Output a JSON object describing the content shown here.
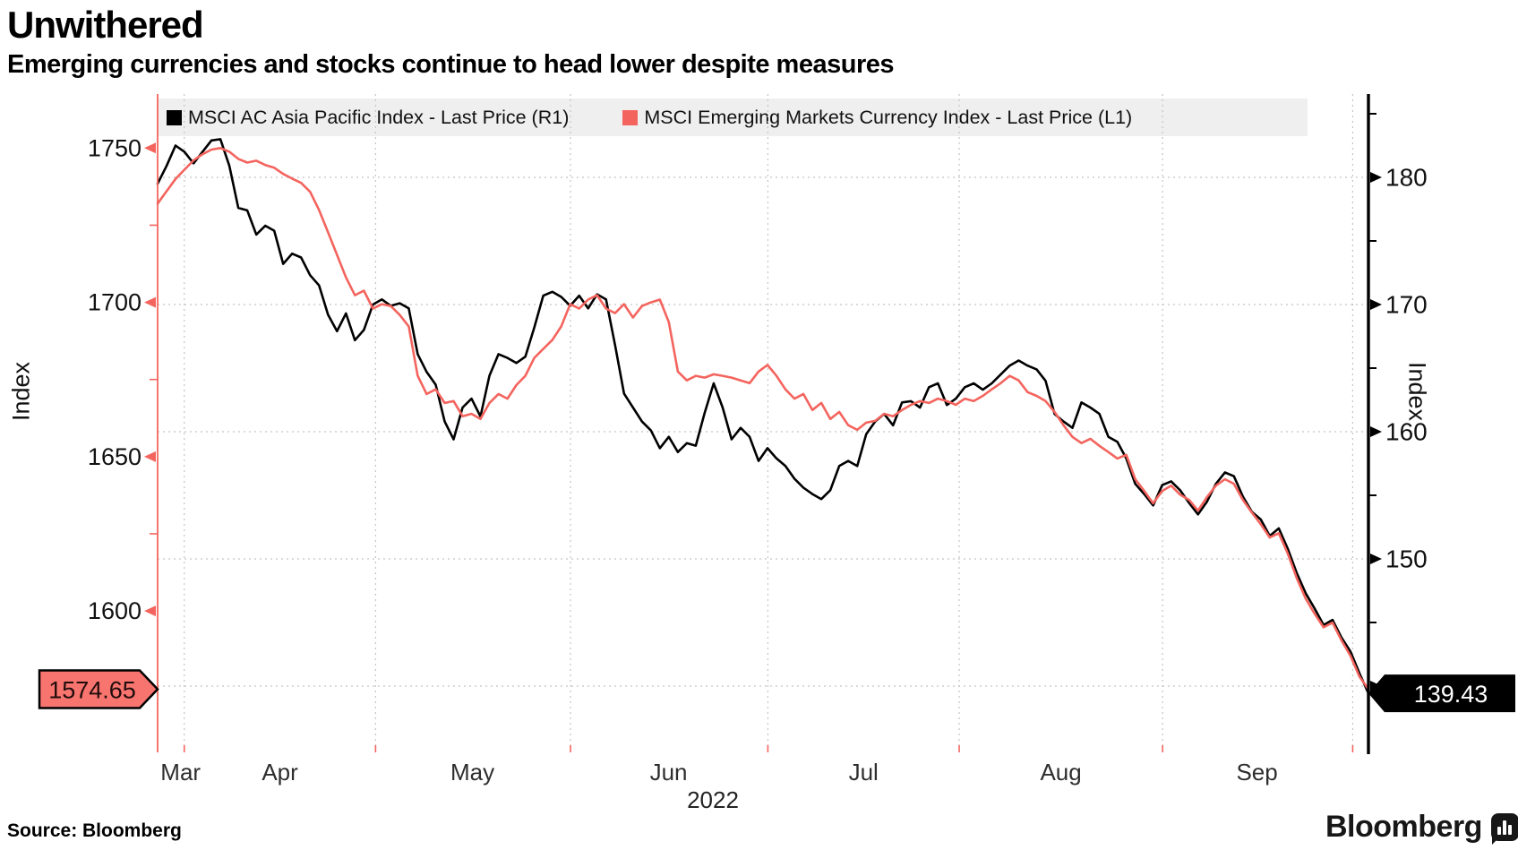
{
  "header": {
    "title": "Unwithered",
    "subtitle": "Emerging currencies and stocks continue to head lower despite measures"
  },
  "footer": {
    "source": "Source:  Bloomberg",
    "brand_wordmark": "Bloomberg",
    "brand_icon": "bar-chart-bubble-icon"
  },
  "legend": {
    "items": [
      {
        "label": "MSCI AC Asia Pacific Index - Last Price (R1)",
        "color": "#000000"
      },
      {
        "label": "MSCI Emerging Markets Currency Index - Last Price (L1)",
        "color": "#f4645e"
      }
    ]
  },
  "chart_data": {
    "type": "line",
    "title": "Unwithered",
    "subtitle": "Emerging currencies and stocks continue to head lower despite measures",
    "grid": "dashed",
    "legend_position": "top",
    "x_axis": {
      "year_label": "2022",
      "month_labels": [
        {
          "label": "Mar",
          "f": 0.019
        },
        {
          "label": "Apr",
          "f": 0.101
        },
        {
          "label": "May",
          "f": 0.26
        },
        {
          "label": "Jun",
          "f": 0.422
        },
        {
          "label": "Jul",
          "f": 0.583
        },
        {
          "label": "Aug",
          "f": 0.746
        },
        {
          "label": "Sep",
          "f": 0.908
        }
      ],
      "gridlines_f": [
        0.022,
        0.18,
        0.341,
        0.504,
        0.662,
        0.83,
        0.987
      ],
      "tick_color": "#f4645e",
      "label_color": "#2e2e2e"
    },
    "left_axis": {
      "title": "Index",
      "color": "#f4645e",
      "top_value": 1767.5,
      "bottom_value": 1556.5,
      "ticks": [
        1750,
        1700,
        1650,
        1600
      ],
      "minor_ticks": [
        1725,
        1675,
        1625
      ],
      "last_price_label": "1574.65",
      "last_price_value": 1574.65,
      "badge_fill": "#f8746e",
      "badge_text_color": "#200d0d"
    },
    "right_axis": {
      "title": "Index",
      "color": "#000000",
      "top_value": 186.55,
      "bottom_value": 135.35,
      "ticks": [
        180,
        170,
        160,
        150,
        140
      ],
      "minor_ticks": [
        185,
        175,
        165,
        155,
        145
      ],
      "gridline_ticks": [
        180,
        170,
        160,
        150,
        140
      ],
      "last_price_label": "139.43",
      "last_price_value": 139.43,
      "badge_fill": "#000000",
      "badge_text_color": "#ffffff"
    },
    "series": [
      {
        "name": "MSCI AC Asia Pacific Index - Last Price (R1)",
        "axis": "right",
        "color": "#000000",
        "values": [
          179.5,
          180.9,
          182.5,
          182.0,
          181.1,
          182.0,
          182.9,
          183.0,
          180.9,
          177.6,
          177.4,
          175.5,
          176.2,
          175.8,
          173.2,
          174.0,
          173.7,
          172.3,
          171.5,
          169.2,
          167.9,
          169.3,
          167.2,
          168.0,
          170.0,
          170.4,
          169.9,
          170.1,
          169.7,
          166.1,
          164.7,
          163.7,
          160.8,
          159.4,
          161.9,
          162.6,
          161.2,
          164.4,
          166.1,
          165.8,
          165.4,
          165.9,
          168.2,
          170.7,
          171.0,
          170.6,
          169.9,
          170.7,
          169.7,
          170.8,
          170.4,
          166.8,
          163.0,
          161.9,
          160.8,
          160.1,
          158.7,
          159.6,
          158.4,
          159.1,
          158.9,
          161.5,
          163.8,
          161.9,
          159.4,
          160.3,
          159.6,
          157.7,
          158.7,
          157.9,
          157.3,
          156.3,
          155.6,
          155.1,
          154.7,
          155.4,
          157.3,
          157.7,
          157.3,
          159.8,
          160.8,
          161.4,
          160.5,
          162.3,
          162.4,
          161.9,
          163.5,
          163.8,
          162.1,
          162.6,
          163.5,
          163.8,
          163.3,
          163.8,
          164.5,
          165.2,
          165.6,
          165.2,
          164.9,
          164.0,
          161.4,
          160.8,
          160.3,
          162.3,
          161.9,
          161.4,
          159.6,
          159.2,
          157.9,
          155.9,
          155.1,
          154.2,
          155.8,
          156.1,
          155.4,
          154.4,
          153.5,
          154.5,
          155.9,
          156.8,
          156.5,
          154.9,
          153.7,
          153.1,
          151.8,
          152.4,
          150.8,
          148.9,
          147.3,
          146.1,
          144.8,
          145.2,
          143.8,
          142.7,
          141.0,
          139.43
        ]
      },
      {
        "name": "MSCI Emerging Markets Currency Index - Last Price (L1)",
        "axis": "left",
        "color": "#f4645e",
        "values": [
          1732,
          1736,
          1740,
          1743,
          1746,
          1748,
          1749.5,
          1750,
          1748.8,
          1746.5,
          1745.3,
          1745.9,
          1744.5,
          1743.6,
          1741.6,
          1740.1,
          1738.7,
          1735.8,
          1729.9,
          1722.7,
          1715.4,
          1708.1,
          1702.3,
          1703.8,
          1698.0,
          1699.4,
          1698.8,
          1695.9,
          1692.2,
          1676.2,
          1670.3,
          1671.8,
          1667.4,
          1668.0,
          1663.1,
          1663.9,
          1662.2,
          1667.4,
          1670.3,
          1668.8,
          1673.2,
          1676.2,
          1682.0,
          1684.9,
          1687.8,
          1692.2,
          1699.4,
          1698.0,
          1700.9,
          1702.3,
          1698.0,
          1696.5,
          1699.4,
          1695.1,
          1698.8,
          1700.0,
          1700.9,
          1693.6,
          1677.6,
          1674.7,
          1676.2,
          1675.6,
          1676.7,
          1676.2,
          1675.6,
          1674.7,
          1673.8,
          1677.6,
          1679.7,
          1676.2,
          1671.8,
          1668.8,
          1670.3,
          1665.1,
          1667.4,
          1662.2,
          1664.5,
          1660.2,
          1658.7,
          1661.0,
          1661.6,
          1663.9,
          1663.1,
          1665.1,
          1666.8,
          1668.0,
          1667.4,
          1668.8,
          1668.0,
          1666.8,
          1668.8,
          1668.0,
          1669.7,
          1671.8,
          1673.8,
          1676.2,
          1674.7,
          1670.9,
          1669.7,
          1668.0,
          1664.5,
          1660.2,
          1656.4,
          1654.4,
          1655.8,
          1653.5,
          1651.5,
          1649.4,
          1650.6,
          1642.7,
          1638.9,
          1634.9,
          1638.9,
          1640.6,
          1637.7,
          1636.0,
          1632.5,
          1636.9,
          1640.6,
          1642.7,
          1641.2,
          1636.0,
          1631.9,
          1628.1,
          1623.8,
          1625.2,
          1618.6,
          1610.7,
          1604.0,
          1599.1,
          1594.7,
          1596.2,
          1590.4,
          1585.4,
          1578.7,
          1574.65
        ]
      }
    ],
    "styles": {
      "gridline_color": "#c4c4c4",
      "legend_background": "#efefef",
      "background": "#ffffff"
    }
  }
}
